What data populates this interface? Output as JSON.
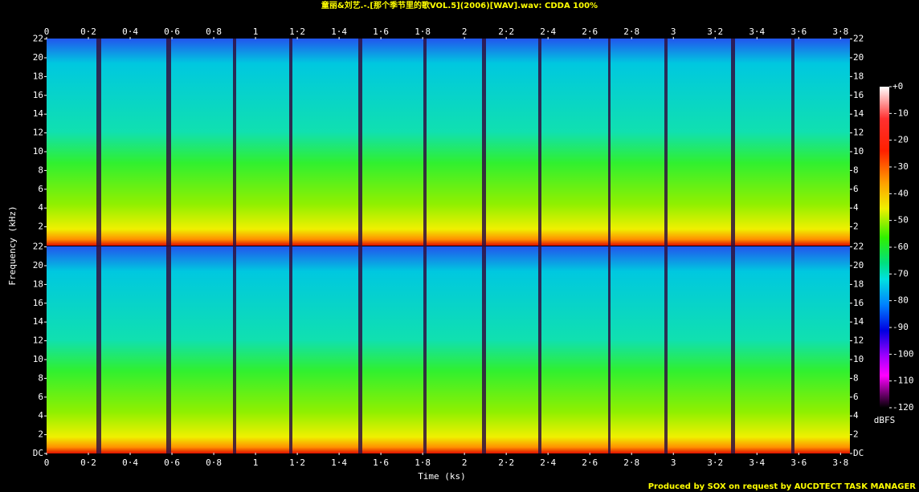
{
  "chart_data": {
    "type": "spectrogram",
    "title": "童丽&刘艺.-.[那个季节里的歌VOL.5](2006)[WAV].wav: CDDA 100%",
    "x_label": "Time (ks)",
    "y_label": "Frequency (kHz)",
    "xlim": [
      0,
      3.845
    ],
    "xticks": [
      0,
      {
        "value": 0.2,
        "label": "0·2"
      },
      {
        "value": 0.4,
        "label": "0·4"
      },
      {
        "value": 0.6,
        "label": "0·6"
      },
      {
        "value": 0.8,
        "label": "0·8"
      },
      1,
      {
        "value": 1.2,
        "label": "1·2"
      },
      {
        "value": 1.4,
        "label": "1·4"
      },
      {
        "value": 1.6,
        "label": "1·6"
      },
      {
        "value": 1.8,
        "label": "1·8"
      },
      2,
      {
        "value": 2.2,
        "label": "2·2"
      },
      {
        "value": 2.4,
        "label": "2·4"
      },
      {
        "value": 2.6,
        "label": "2·6"
      },
      {
        "value": 2.8,
        "label": "2·8"
      },
      3,
      {
        "value": 3.2,
        "label": "3·2"
      },
      {
        "value": 3.4,
        "label": "3·4"
      },
      {
        "value": 3.6,
        "label": "3·6"
      },
      {
        "value": 3.8,
        "label": "3·8"
      }
    ],
    "channels": [
      {
        "ylim": [
          0,
          22.05
        ],
        "yticks": [
          2,
          4,
          6,
          8,
          10,
          12,
          14,
          16,
          18,
          20,
          22
        ]
      },
      {
        "ylim": [
          0,
          22.05
        ],
        "yticks": [
          {
            "value": 0,
            "label": "DC"
          },
          2,
          4,
          6,
          8,
          10,
          12,
          14,
          16,
          18,
          20,
          22
        ]
      }
    ],
    "colorbar": {
      "label": "dBFS",
      "lim": [
        -120,
        0
      ],
      "ticks": [
        {
          "value": 0,
          "label": "+0"
        },
        -10,
        -20,
        -30,
        -40,
        -50,
        -60,
        -70,
        -80,
        -90,
        -100,
        -110,
        -120
      ]
    },
    "footer": "Produced by SOX on request by AUCDTECT TASK MANAGER"
  }
}
